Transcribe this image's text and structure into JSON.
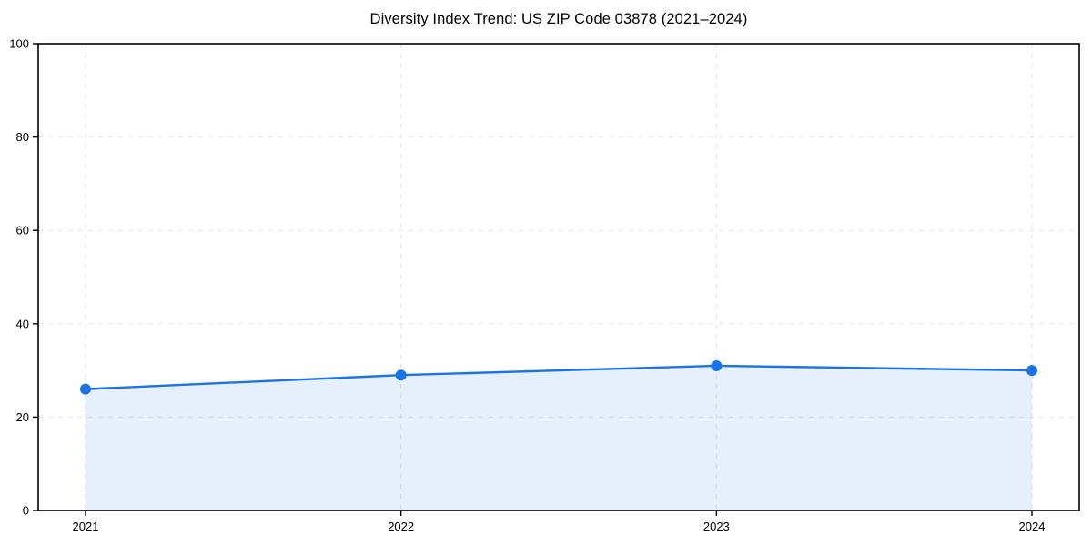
{
  "page": {
    "background_color": "#ffffff"
  },
  "chart_data": {
    "type": "line",
    "title": "Diversity Index Trend: US ZIP Code 03878 (2021–2024)",
    "x": [
      2021,
      2022,
      2023,
      2024
    ],
    "series": [
      {
        "name": "Diversity Index",
        "values": [
          26,
          29,
          31,
          30
        ]
      }
    ],
    "xlabel": "",
    "ylabel": "",
    "ylim": [
      0,
      100
    ],
    "yticks": [
      0,
      20,
      40,
      60,
      80,
      100
    ],
    "xtick_labels": [
      "2021",
      "2022",
      "2023",
      "2024"
    ],
    "grid": "dashed, horizontal and vertical",
    "legend_position": "none",
    "area_fill_under_line": true,
    "marker": "circle",
    "colors": {
      "line": "#1a73e8",
      "marker": "#1a73e8",
      "area_fill": "rgba(26,115,232,0.11)",
      "grid": "#e3e3e3",
      "spine": "#000000",
      "tick_text": "#000000",
      "title_text": "#000000"
    }
  }
}
